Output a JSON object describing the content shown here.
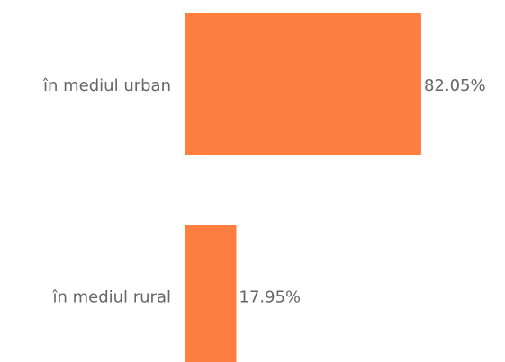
{
  "chart_data": {
    "type": "hbar",
    "categories": [
      "în mediul urban",
      "în mediul rural"
    ],
    "values": [
      82.05,
      17.95
    ],
    "value_labels": [
      "82.05%",
      "17.95%"
    ],
    "color": "#ff7f41"
  }
}
